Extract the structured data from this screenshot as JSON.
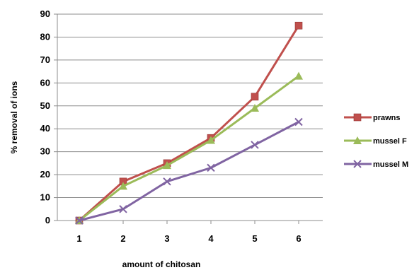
{
  "chart_data": {
    "type": "line",
    "title": "",
    "xlabel": "amount of chitosan",
    "ylabel": "%  removal of ions",
    "categories": [
      "1",
      "2",
      "3",
      "4",
      "5",
      "6"
    ],
    "ylim": [
      0,
      90
    ],
    "yticks": [
      0,
      10,
      20,
      30,
      40,
      50,
      60,
      70,
      80,
      90
    ],
    "grid": "horizontal",
    "legend_position": "right",
    "series": [
      {
        "name": "prawns",
        "color": "#c0504d",
        "marker": "square",
        "values": [
          0,
          17,
          25,
          36,
          54,
          85
        ]
      },
      {
        "name": "mussel F",
        "color": "#9bbb59",
        "marker": "triangle",
        "values": [
          0,
          15,
          24,
          35,
          49,
          63
        ]
      },
      {
        "name": "mussel M",
        "color": "#8064a2",
        "marker": "x",
        "values": [
          0,
          5,
          17,
          23,
          33,
          43
        ]
      }
    ]
  }
}
